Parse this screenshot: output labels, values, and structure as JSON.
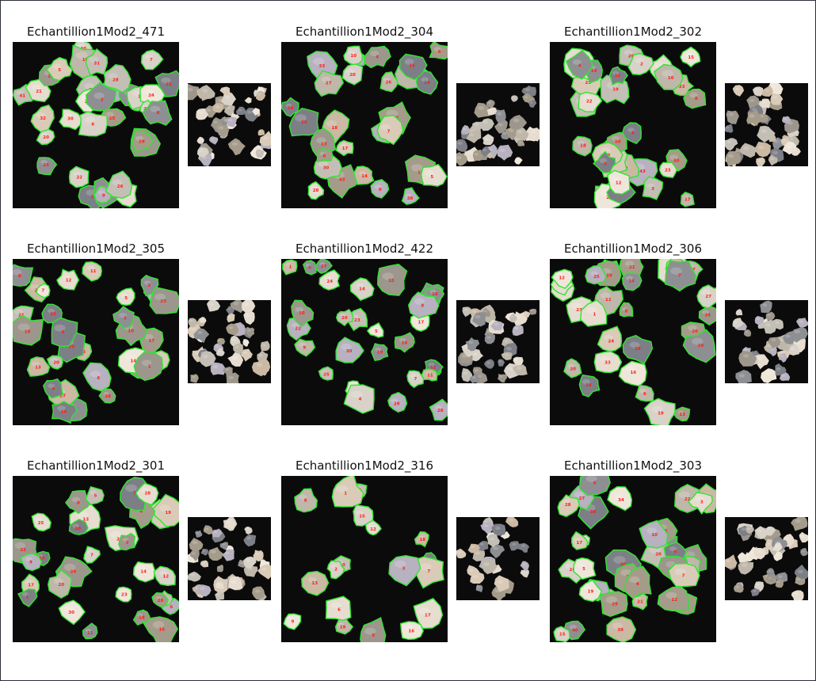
{
  "figure": {
    "panels": [
      {
        "title": "Echantillion1Mod2_471",
        "seed": 471,
        "count": 34,
        "labels": [
          "40",
          "41",
          "18",
          "19",
          "15",
          "22",
          "20",
          "17",
          "21",
          "23",
          "25",
          "12",
          "13",
          "14",
          "16",
          "6",
          "3",
          "4",
          "7",
          "9",
          "5",
          "2",
          "1",
          "10",
          "11",
          "24",
          "26",
          "27",
          "28",
          "29",
          "30",
          "31",
          "32",
          "8"
        ]
      },
      {
        "title": "Echantillion1Mod2_304",
        "seed": 304,
        "count": 30,
        "labels": [
          "43",
          "38",
          "40",
          "34",
          "39",
          "33",
          "26",
          "21",
          "29",
          "20",
          "23",
          "27",
          "30",
          "28",
          "18",
          "17",
          "16",
          "19",
          "15",
          "13",
          "14",
          "12",
          "11",
          "10",
          "9",
          "8",
          "7",
          "6",
          "5",
          "4"
        ]
      },
      {
        "title": "Echantillion1Mod2_302",
        "seed": 302,
        "count": 32,
        "labels": [
          "35",
          "43",
          "32",
          "41",
          "33",
          "34",
          "36",
          "30",
          "27",
          "26",
          "29",
          "25",
          "22",
          "21",
          "23",
          "19",
          "18",
          "17",
          "13",
          "15",
          "16",
          "14",
          "12",
          "11",
          "10",
          "9",
          "8",
          "6",
          "5",
          "4",
          "3",
          "2"
        ]
      },
      {
        "title": "Echantillion1Mod2_305",
        "seed": 305,
        "count": 30,
        "labels": [
          "34",
          "33",
          "27",
          "28",
          "29",
          "30",
          "23",
          "22",
          "25",
          "21",
          "20",
          "18",
          "19",
          "17",
          "16",
          "13",
          "15",
          "12",
          "14",
          "11",
          "10",
          "9",
          "8",
          "7",
          "6",
          "5",
          "4",
          "3",
          "2",
          "1"
        ]
      },
      {
        "title": "Echantillion1Mod2_422",
        "seed": 422,
        "count": 28,
        "labels": [
          "30",
          "29",
          "28",
          "27",
          "25",
          "26",
          "24",
          "22",
          "23",
          "21",
          "20",
          "18",
          "19",
          "17",
          "16",
          "14",
          "15",
          "13",
          "12",
          "11",
          "10",
          "9",
          "8",
          "7",
          "6",
          "5",
          "4",
          "1"
        ]
      },
      {
        "title": "Echantillion1Mod2_306",
        "seed": 306,
        "count": 30,
        "labels": [
          "36",
          "35",
          "33",
          "34",
          "30",
          "29",
          "28",
          "27",
          "26",
          "25",
          "24",
          "23",
          "22",
          "21",
          "20",
          "19",
          "18",
          "17",
          "16",
          "15",
          "14",
          "13",
          "12",
          "11",
          "10",
          "9",
          "8",
          "7",
          "6",
          "1"
        ]
      },
      {
        "title": "Echantillion1Mod2_301",
        "seed": 301,
        "count": 30,
        "labels": [
          "24",
          "21",
          "26",
          "25",
          "23",
          "22",
          "20",
          "19",
          "18",
          "17",
          "16",
          "15",
          "14",
          "13",
          "12",
          "11",
          "10",
          "9",
          "8",
          "7",
          "6",
          "5",
          "4",
          "3",
          "2",
          "1",
          "27",
          "28",
          "29",
          "30"
        ]
      },
      {
        "title": "Echantillion1Mod2_316",
        "seed": 316,
        "count": 18,
        "labels": [
          "19",
          "18",
          "17",
          "16",
          "15",
          "13",
          "12",
          "11",
          "10",
          "9",
          "8",
          "7",
          "6",
          "5",
          "4",
          "3",
          "2",
          "1"
        ]
      },
      {
        "title": "Echantillion1Mod2_303",
        "seed": 303,
        "count": 34,
        "labels": [
          "44",
          "42",
          "38",
          "36",
          "39",
          "40",
          "34",
          "24",
          "30",
          "27",
          "28",
          "29",
          "25",
          "26",
          "22",
          "21",
          "20",
          "19",
          "18",
          "17",
          "16",
          "15",
          "14",
          "13",
          "12",
          "11",
          "10",
          "9",
          "8",
          "7",
          "6",
          "5",
          "4",
          "3"
        ]
      }
    ],
    "colors": {
      "contour": "#2fe52f",
      "label": "#ff1e1e",
      "background": "#0b0b0b"
    }
  }
}
